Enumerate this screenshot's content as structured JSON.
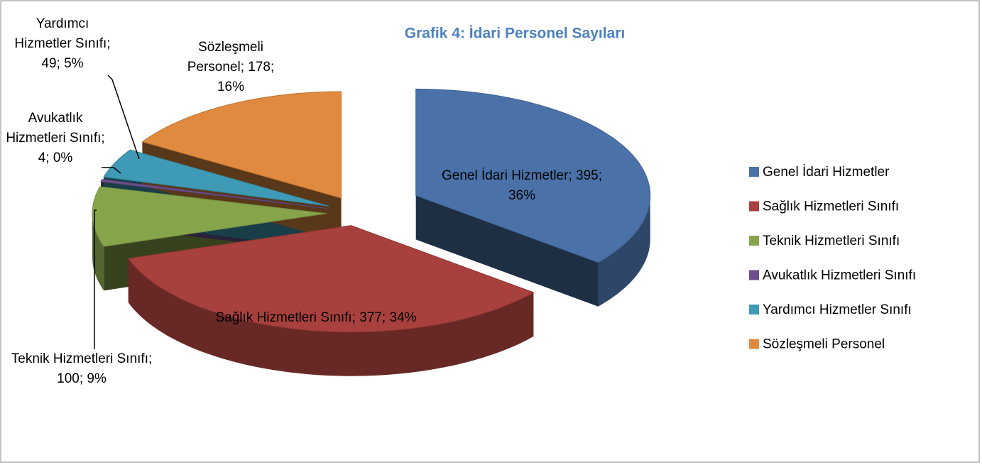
{
  "chart_data": {
    "type": "pie",
    "title": "Grafik 4: İdari Personel Sayıları",
    "categories": [
      "Genel İdari Hizmetler",
      "Sağlık Hizmetleri Sınıfı",
      "Teknik Hizmetleri Sınıfı",
      "Avukatlık Hizmetleri Sınıfı",
      "Yardımcı Hizmetler Sınıfı",
      "Sözleşmeli Personel"
    ],
    "values": [
      395,
      377,
      100,
      4,
      49,
      178
    ],
    "value_labels": [
      "Genel İdari Hizmetler; 395; 36%",
      "Sağlık Hizmetleri Sınıfı; 377; 34%",
      "Teknik Hizmetleri Sınıfı; 100; 9%",
      "Avukatlık Hizmetleri Sınıfı; 4; 0%",
      "Yardımcı Hizmetler Sınıfı; 49; 5%",
      "Sözleşmeli Personel; 178; 16%"
    ],
    "colors": [
      "#4a72a8",
      "#a8403d",
      "#86a54a",
      "#6a4f8c",
      "#3e9ab5",
      "#df8a3e"
    ],
    "legend": "right"
  }
}
